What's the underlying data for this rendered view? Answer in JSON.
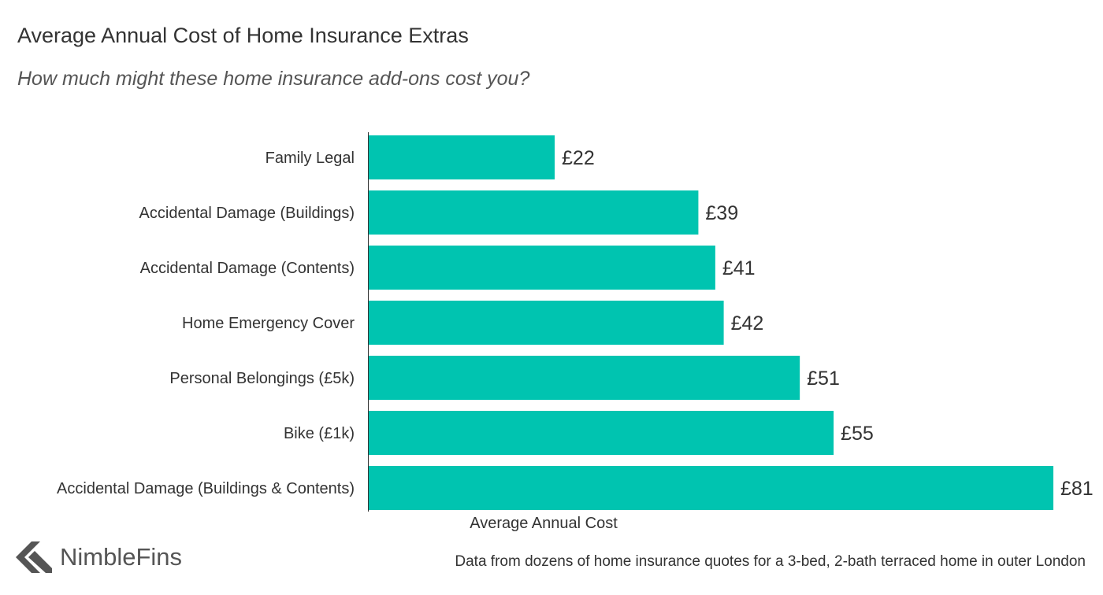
{
  "chart_data": {
    "type": "bar",
    "orientation": "horizontal",
    "title": "Average Annual Cost of Home Insurance Extras",
    "subtitle": "How much might these home insurance add-ons cost you?",
    "xlabel": "Average Annual Cost",
    "ylabel": "",
    "categories": [
      "Family Legal",
      "Accidental Damage (Buildings)",
      "Accidental Damage (Contents)",
      "Home Emergency Cover",
      "Personal Belongings (£5k)",
      "Bike (£1k)",
      "Accidental Damage (Buildings & Contents)"
    ],
    "values": [
      22,
      39,
      41,
      42,
      51,
      55,
      81
    ],
    "value_labels": [
      "£22",
      "£39",
      "£41",
      "£42",
      "£51",
      "£55",
      "£81"
    ],
    "xlim": [
      0,
      81
    ],
    "bar_color": "#00c4b0",
    "grid": false,
    "legend": "none"
  },
  "branding": {
    "logo_text": "NimbleFins",
    "logo_icon": "nimblefins-chevron-icon",
    "logo_color": "#555555"
  },
  "source_note": "Data from dozens of home insurance quotes for a 3-bed, 2-bath terraced home in outer London"
}
